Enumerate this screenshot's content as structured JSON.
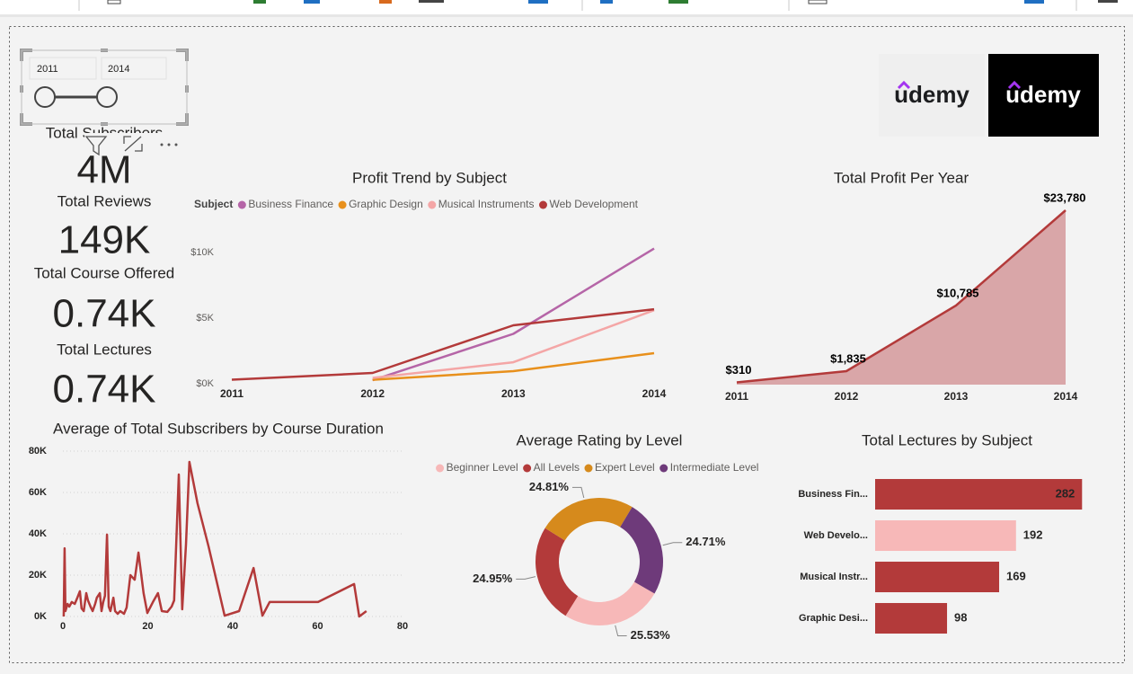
{
  "slicer": {
    "start": "2011",
    "end": "2014"
  },
  "kpis": [
    {
      "label": "Total Subscribers",
      "value": "4M"
    },
    {
      "label": "Total Reviews",
      "value": "149K"
    },
    {
      "label": "Total Course Offered",
      "value": "0.74K"
    },
    {
      "label": "Total Lectures",
      "value": "0.74K"
    }
  ],
  "logos": [
    "udemy",
    "udemy"
  ],
  "chart_data": [
    {
      "type": "line",
      "title": "Profit Trend by Subject",
      "legend_title": "Subject",
      "categories": [
        "2011",
        "2012",
        "2013",
        "2014"
      ],
      "series": [
        {
          "name": "Business Finance",
          "color": "#b565a7",
          "values": [
            null,
            270,
            3800,
            10300
          ]
        },
        {
          "name": "Graphic Design",
          "color": "#e8901c",
          "values": [
            null,
            300,
            960,
            2330
          ]
        },
        {
          "name": "Musical Instruments",
          "color": "#f4a6a6",
          "values": [
            null,
            445,
            1640,
            5600
          ]
        },
        {
          "name": "Web Development",
          "color": "#b33a3a",
          "values": [
            310,
            820,
            4450,
            5680
          ]
        }
      ],
      "ylim": [
        0,
        10800
      ],
      "yticks": [
        {
          "value": 0,
          "label": "$0K"
        },
        {
          "value": 5000,
          "label": "$5K"
        },
        {
          "value": 10000,
          "label": "$10K"
        }
      ],
      "grid": false
    },
    {
      "type": "area",
      "title": "Total Profit Per Year",
      "categories": [
        "2011",
        "2012",
        "2013",
        "2014"
      ],
      "values": [
        310,
        1835,
        10785,
        23780
      ],
      "value_labels": [
        "$310",
        "$1,835",
        "$10,785",
        "$23,780"
      ],
      "color": "#b33a3a",
      "fill": "#d9a6a8",
      "ylim": [
        0,
        25000
      ]
    },
    {
      "type": "line",
      "title": "Average of Total Subscribers by Course Duration",
      "x": [
        0.2,
        0.4,
        0.6,
        1.1,
        1.5,
        2.1,
        2.8,
        3.4,
        4.0,
        4.4,
        4.9,
        5.5,
        5.9,
        6.6,
        7.0,
        7.6,
        8.0,
        8.7,
        9.1,
        9.5,
        9.9,
        10.4,
        10.8,
        11.2,
        11.9,
        12.3,
        12.9,
        13.5,
        14.4,
        15.0,
        15.9,
        16.9,
        17.8,
        19.0,
        19.9,
        21.2,
        22.4,
        23.3,
        24.6,
        25.6,
        26.2,
        27.3,
        28.1,
        29.0,
        29.8,
        31.7,
        34.3,
        38.1,
        41.5,
        44.9,
        47.0,
        48.7,
        54.2,
        60.1,
        68.6,
        69.8,
        71.5
      ],
      "series": [
        {
          "color": "#b33a3a",
          "values": [
            0,
            33000,
            2600,
            6100,
            4800,
            7000,
            6100,
            9100,
            12200,
            3900,
            2600,
            11300,
            7800,
            4300,
            2600,
            6100,
            9100,
            11300,
            2600,
            7000,
            10000,
            39600,
            4800,
            2600,
            9100,
            2600,
            1300,
            2600,
            1300,
            4300,
            20000,
            17800,
            30900,
            11300,
            1700,
            7000,
            11300,
            2600,
            2200,
            4800,
            7800,
            68700,
            3500,
            34800,
            74800,
            54800,
            33900,
            400,
            2600,
            23500,
            400,
            7000,
            7000,
            7000,
            15700,
            0,
            2600
          ]
        }
      ],
      "xlim": [
        0,
        80
      ],
      "xticks": [
        0,
        20,
        40,
        60,
        80
      ],
      "ylim": [
        0,
        80000
      ],
      "yticks": [
        {
          "value": 0,
          "label": "0K"
        },
        {
          "value": 20000,
          "label": "20K"
        },
        {
          "value": 40000,
          "label": "40K"
        },
        {
          "value": 60000,
          "label": "60K"
        },
        {
          "value": 80000,
          "label": "80K"
        }
      ],
      "grid": true
    },
    {
      "type": "donut",
      "title": "Average Rating by Level",
      "categories": [
        "Beginner Level",
        "All Levels",
        "Expert Level",
        "Intermediate Level"
      ],
      "values": [
        25.53,
        24.95,
        24.81,
        24.71
      ],
      "value_labels": [
        "25.53%",
        "24.95%",
        "24.81%",
        "24.71%"
      ],
      "colors": [
        "#f7b8b8",
        "#b33a3a",
        "#d68a1c",
        "#6e3a7a"
      ]
    },
    {
      "type": "hbar",
      "title": "Total Lectures by Subject",
      "categories": [
        "Business Fin...",
        "Web Develo...",
        "Musical Instr...",
        "Graphic Desi..."
      ],
      "values": [
        282,
        192,
        169,
        98
      ],
      "colors": [
        "#b33a3a",
        "#f7b8b8",
        "#b33a3a",
        "#b33a3a"
      ],
      "xlim": [
        0,
        300
      ]
    }
  ]
}
